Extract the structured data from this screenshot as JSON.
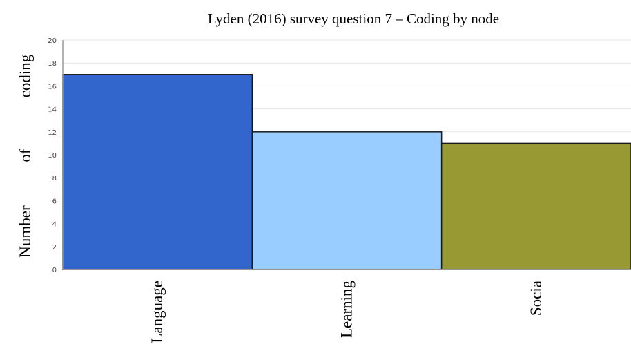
{
  "chart_data": {
    "type": "bar",
    "title": "Lyden (2016) survey question 7 – Coding by node",
    "ylabel": "Number of coding",
    "ylabel_words": [
      "Number",
      "of",
      "coding"
    ],
    "xlabel": "",
    "categories": [
      "Language",
      "Learning",
      "Socia"
    ],
    "values": [
      17,
      12,
      11
    ],
    "colors": [
      "#3366cc",
      "#99ccff",
      "#999933"
    ],
    "ylim": [
      0,
      20
    ],
    "yticks": [
      "0",
      "2",
      "4",
      "6",
      "8",
      "10",
      "12",
      "14",
      "16",
      "18",
      "20"
    ],
    "grid": true,
    "legend": "none"
  }
}
